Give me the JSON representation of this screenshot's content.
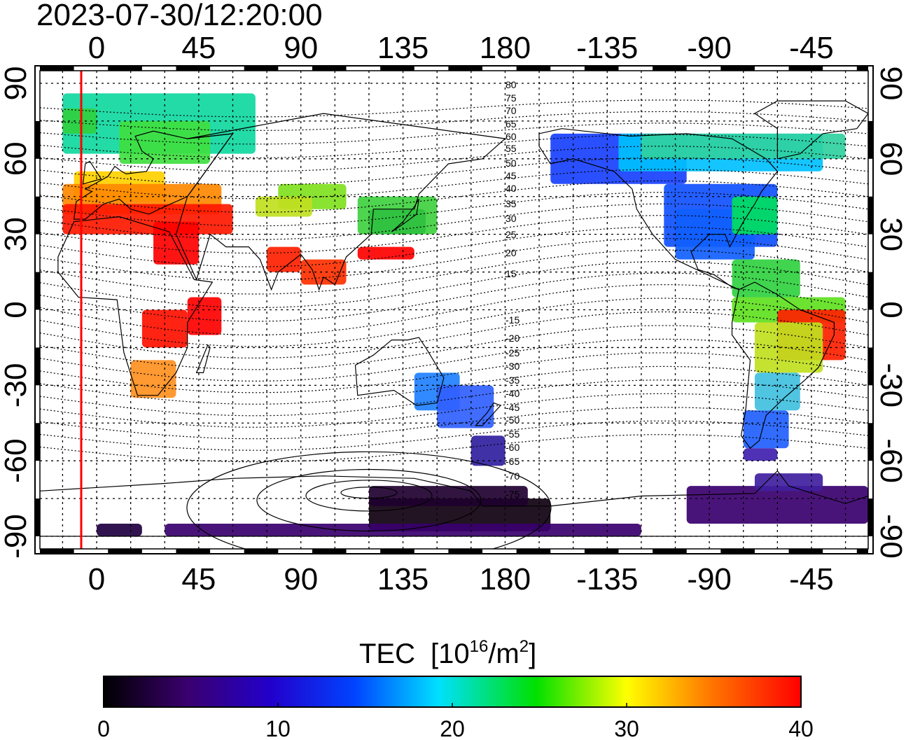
{
  "title": "2023-07-30/12:20:00",
  "map": {
    "lon_ticks": [
      "0",
      "45",
      "90",
      "135",
      "180",
      "-135",
      "-90",
      "-45"
    ],
    "lat_ticks": [
      "90",
      "60",
      "30",
      "0",
      "-30",
      "-60",
      "-90"
    ],
    "lon_range_deg": [
      -25,
      340
    ],
    "lat_range_deg": [
      -95,
      95
    ],
    "grid": true,
    "terminator_line_color": "#ff0000",
    "contour_labels": [
      "80",
      "75",
      "70",
      "65",
      "60",
      "55",
      "50",
      "45",
      "40",
      "35",
      "30",
      "25",
      "20",
      "15",
      "-15",
      "-20",
      "-25",
      "-30",
      "-35",
      "-40",
      "-45",
      "-50",
      "-55",
      "-60",
      "-65",
      "-70",
      "-75"
    ]
  },
  "colorbar": {
    "label": "TEC",
    "unit_base": "[10",
    "unit_exp": "16",
    "unit_mid": "/m",
    "unit_exp2": "2",
    "unit_close": "]",
    "ticks": [
      "0",
      "10",
      "20",
      "30",
      "40"
    ],
    "range": [
      0,
      40
    ],
    "colors": [
      "#000000",
      "#3a006e",
      "#2200cc",
      "#0044ff",
      "#00e0ff",
      "#00e000",
      "#ffff00",
      "#ff7700",
      "#ff0000"
    ]
  }
}
